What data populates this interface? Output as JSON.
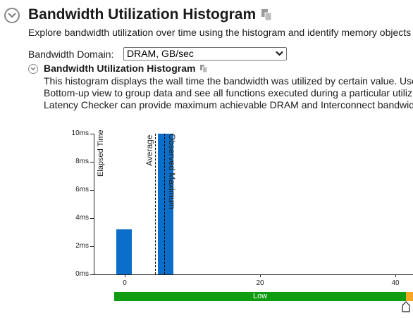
{
  "header": {
    "title": "Bandwidth Utilization Histogram",
    "description": "Explore bandwidth utilization over time using the histogram and identify memory objects"
  },
  "domain": {
    "label": "Bandwidth Domain:",
    "selected": "DRAM, GB/sec"
  },
  "section": {
    "title": "Bandwidth Utilization Histogram",
    "lines": [
      "This histogram displays the wall time the bandwidth was utilized by certain value. Use",
      "Bottom-up view to group data and see all functions executed during a particular utiliz",
      "Latency Checker can provide maximum achievable DRAM and Interconnect bandwid"
    ]
  },
  "chart_data": {
    "type": "bar",
    "ylabel": "Elapsed Time",
    "y_tick_labels": [
      "10ms",
      "8ms",
      "6ms",
      "4ms",
      "2ms",
      "0ms"
    ],
    "y_ticks": [
      10,
      8,
      6,
      4,
      2,
      0
    ],
    "ylim": [
      0,
      10
    ],
    "x_tick_labels": [
      "0",
      "20",
      "40"
    ],
    "x_ticks": [
      0,
      20,
      40
    ],
    "xlim": [
      -1.5,
      41.5
    ],
    "bars": [
      {
        "x": 0,
        "value": 3.2
      },
      {
        "x": 6,
        "value": 10
      }
    ],
    "markers": [
      {
        "label": "Average",
        "x": 4.5
      },
      {
        "label": "Observed Maximum",
        "x": 6
      }
    ],
    "grid": false
  },
  "utilization_bar": {
    "segments": [
      {
        "label": "Low",
        "color": "#109c10",
        "from": -1.5,
        "to": 40.5
      },
      {
        "label": "",
        "color": "#f5a623",
        "from": 40.5,
        "to": 41.5
      }
    ],
    "slider_value": 40.5
  },
  "colors": {
    "bar": "#0b6ec9",
    "low": "#109c10",
    "medium": "#f5a623"
  },
  "icons": [
    "chevron-down-icon",
    "copy-icon",
    "chevron-down-icon",
    "copy-icon",
    "slider-handle-icon"
  ]
}
